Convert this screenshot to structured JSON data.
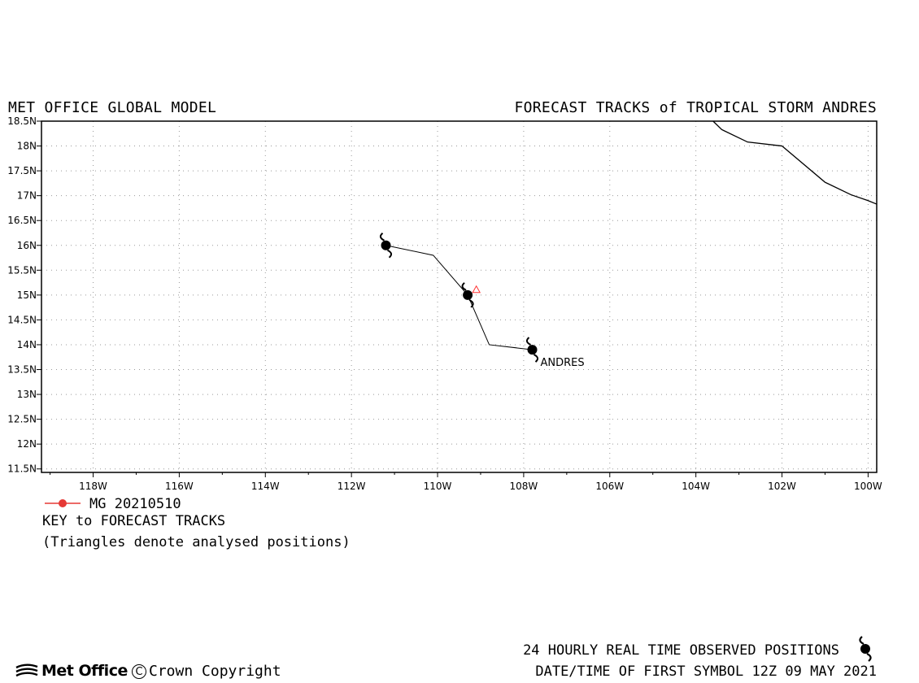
{
  "header": {
    "model_title": "MET OFFICE GLOBAL MODEL",
    "chart_title": "FORECAST TRACKS of TROPICAL STORM ANDRES"
  },
  "chart_data": {
    "type": "line",
    "title": "FORECAST TRACKS of TROPICAL STORM ANDRES",
    "xlabel": "",
    "ylabel": "",
    "xlim": [
      -119.2,
      -99.8
    ],
    "ylim": [
      11.43,
      18.5
    ],
    "x_ticks": [
      -118,
      -116,
      -114,
      -112,
      -110,
      -108,
      -106,
      -104,
      -102,
      -100
    ],
    "x_tick_labels": [
      "118W",
      "116W",
      "114W",
      "112W",
      "110W",
      "108W",
      "106W",
      "104W",
      "102W",
      "100W"
    ],
    "y_ticks": [
      11.5,
      12,
      12.5,
      13,
      13.5,
      14,
      14.5,
      15,
      15.5,
      16,
      16.5,
      17,
      17.5,
      18,
      18.5
    ],
    "y_tick_labels": [
      "11.5N",
      "12N",
      "12.5N",
      "13N",
      "13.5N",
      "14N",
      "14.5N",
      "15N",
      "15.5N",
      "16N",
      "16.5N",
      "17N",
      "17.5N",
      "18N",
      "18.5N"
    ],
    "grid": true,
    "storm_label": "ANDRES",
    "observed_track": {
      "points": [
        [
          -107.8,
          13.9
        ],
        [
          -108.8,
          14.0
        ],
        [
          -109.3,
          15.0
        ],
        [
          -110.1,
          15.8
        ],
        [
          -111.2,
          16.0
        ]
      ],
      "symbol_points": [
        [
          -107.8,
          13.9
        ],
        [
          -109.3,
          15.0
        ],
        [
          -111.2,
          16.0
        ]
      ]
    },
    "analysed_positions": [
      [
        -109.1,
        15.1
      ]
    ],
    "coastline": [
      [
        -103.6,
        18.5
      ],
      [
        -103.4,
        18.33
      ],
      [
        -102.8,
        18.08
      ],
      [
        -102.0,
        18.0
      ],
      [
        -101.0,
        17.27
      ],
      [
        -100.4,
        17.02
      ],
      [
        -100.0,
        16.9
      ],
      [
        -99.8,
        16.83
      ]
    ],
    "colors": {
      "track": "#000000",
      "analysed": "#ff3333",
      "legend": "#e53935",
      "grid": "#999999"
    }
  },
  "legend": {
    "run_label": "MG 20210510",
    "key_title": "KEY to FORECAST TRACKS",
    "note": "(Triangles denote analysed positions)"
  },
  "footer": {
    "observed_text": "24 HOURLY REAL TIME OBSERVED POSITIONS",
    "date_text": "DATE/TIME OF FIRST SYMBOL 12Z 09 MAY 2021",
    "logo_text": "Met Office",
    "copyright_text": "Crown Copyright",
    "copyright_symbol": "C"
  }
}
